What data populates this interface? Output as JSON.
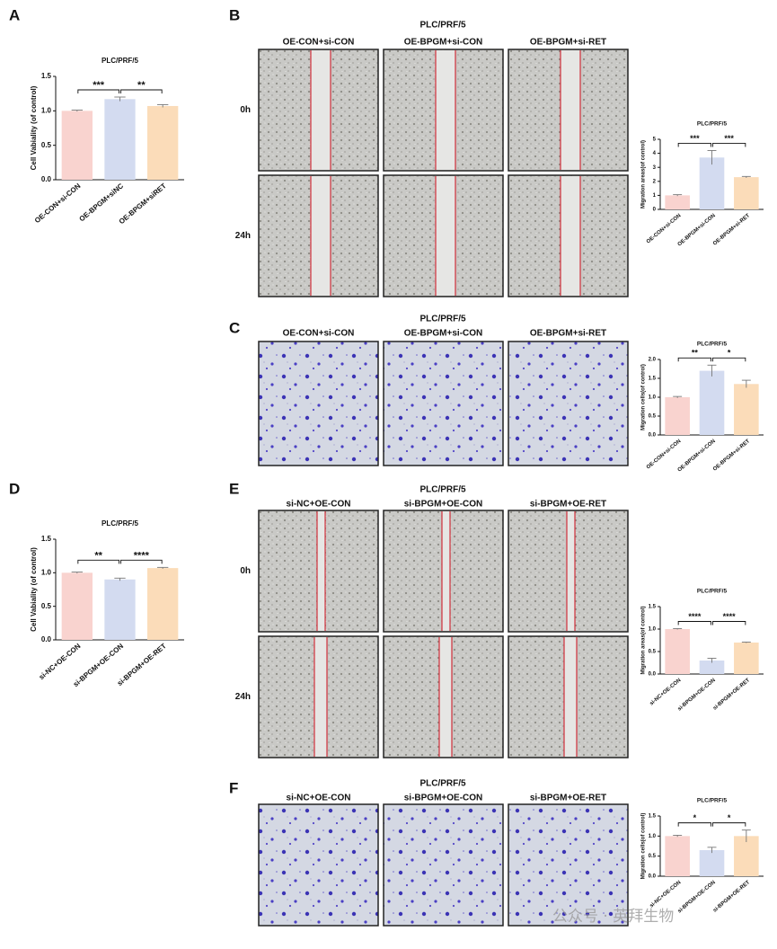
{
  "panel_letters": [
    "A",
    "B",
    "C",
    "D",
    "E",
    "F"
  ],
  "image_panels": [
    {
      "title": "PLC/PRF/5",
      "columns": [
        "OE-CON+si-CON",
        "OE-BPGM+si-CON",
        "OE-BPGM+si-RET"
      ],
      "rows": [
        "0h",
        "24h"
      ]
    },
    {
      "title": "PLC/PRF/5",
      "columns": [
        "OE-CON+si-CON",
        "OE-BPGM+si-CON",
        "OE-BPGM+si-RET"
      ]
    },
    {
      "title": "PLC/PRF/5",
      "columns": [
        "si-NC+OE-CON",
        "si-BPGM+OE-CON",
        "si-BPGM+OE-RET"
      ],
      "rows": [
        "0h",
        "24h"
      ]
    },
    {
      "title": "PLC/PRF/5",
      "columns": [
        "si-NC+OE-CON",
        "si-BPGM+OE-CON",
        "si-BPGM+OE-RET"
      ]
    }
  ],
  "watermark": "公众号 · 英拜生物",
  "chart_data": [
    {
      "type": "bar",
      "title": "PLC/PRF/5",
      "ylabel": "Cell Vabiality (of control)",
      "categories": [
        "OE-CON+si-CON",
        "OE-BPGM+siNC",
        "OE-BPGM+siRET"
      ],
      "values": [
        1.0,
        1.17,
        1.07
      ],
      "errors": [
        0.01,
        0.03,
        0.02
      ],
      "colors": [
        "#f9d3cf",
        "#d3dbf0",
        "#fbdcb9"
      ],
      "ylim": [
        0,
        1.5
      ],
      "yticks": [
        {
          "value": 0,
          "label": "0.0"
        },
        {
          "value": 0.5,
          "label": "0.5"
        },
        {
          "value": 1,
          "label": "1.0"
        },
        {
          "value": 1.5,
          "label": "1.5"
        }
      ],
      "significance": [
        {
          "pair": [
            0,
            1
          ],
          "label": "***"
        },
        {
          "pair": [
            1,
            2
          ],
          "label": "**"
        }
      ]
    },
    {
      "type": "bar",
      "title": "PLC/PRF/5",
      "ylabel": "Migration areas(of control)",
      "categories": [
        "OE-CON+si-CON",
        "OE-BPGM+si-CON",
        "OE-BPGM+si-RET"
      ],
      "values": [
        1.0,
        3.7,
        2.3
      ],
      "errors": [
        0.05,
        0.5,
        0.05
      ],
      "colors": [
        "#f9d3cf",
        "#d3dbf0",
        "#fbdcb9"
      ],
      "ylim": [
        0,
        5
      ],
      "yticks": [
        0,
        1,
        2,
        3,
        4,
        5
      ],
      "significance": [
        {
          "pair": [
            0,
            1
          ],
          "label": "***"
        },
        {
          "pair": [
            1,
            2
          ],
          "label": "***"
        }
      ]
    },
    {
      "type": "bar",
      "title": "PLC/PRF/5",
      "ylabel": "Migration cells(of control)",
      "categories": [
        "OE-CON+si-CON",
        "OE-BPGM+si-CON",
        "OE-BPGM+si-RET"
      ],
      "values": [
        1.0,
        1.7,
        1.35
      ],
      "errors": [
        0.02,
        0.15,
        0.1
      ],
      "colors": [
        "#f9d3cf",
        "#d3dbf0",
        "#fbdcb9"
      ],
      "ylim": [
        0,
        2
      ],
      "yticks": [
        {
          "value": 0,
          "label": "0.0"
        },
        {
          "value": 0.5,
          "label": "0.5"
        },
        {
          "value": 1,
          "label": "1.0"
        },
        {
          "value": 1.5,
          "label": "1.5"
        },
        {
          "value": 2,
          "label": "2.0"
        }
      ],
      "significance": [
        {
          "pair": [
            0,
            1
          ],
          "label": "**"
        },
        {
          "pair": [
            1,
            2
          ],
          "label": "*"
        }
      ]
    },
    {
      "type": "bar",
      "title": "PLC/PRF/5",
      "ylabel": "Cell Vabiality (of control)",
      "categories": [
        "si-NC+OE-CON",
        "si-BPGM+OE-CON",
        "si-BPGM+OE-RET"
      ],
      "values": [
        1.0,
        0.9,
        1.07
      ],
      "errors": [
        0.01,
        0.02,
        0.01
      ],
      "colors": [
        "#f9d3cf",
        "#d3dbf0",
        "#fbdcb9"
      ],
      "ylim": [
        0,
        1.5
      ],
      "yticks": [
        {
          "value": 0,
          "label": "0.0"
        },
        {
          "value": 0.5,
          "label": "0.5"
        },
        {
          "value": 1,
          "label": "1.0"
        },
        {
          "value": 1.5,
          "label": "1.5"
        }
      ],
      "significance": [
        {
          "pair": [
            0,
            1
          ],
          "label": "**"
        },
        {
          "pair": [
            1,
            2
          ],
          "label": "****"
        }
      ]
    },
    {
      "type": "bar",
      "title": "PLC/PRF/5",
      "ylabel": "Migration areas(of control)",
      "categories": [
        "si-NC+OE-CON",
        "si-BPGM+OE-CON",
        "si-BPGM+OE-RET"
      ],
      "values": [
        1.0,
        0.3,
        0.7
      ],
      "errors": [
        0.01,
        0.05,
        0.01
      ],
      "colors": [
        "#f9d3cf",
        "#d3dbf0",
        "#fbdcb9"
      ],
      "ylim": [
        0,
        1.5
      ],
      "yticks": [
        {
          "value": 0,
          "label": "0.0"
        },
        {
          "value": 0.5,
          "label": "0.5"
        },
        {
          "value": 1,
          "label": "1.0"
        },
        {
          "value": 1.5,
          "label": "1.5"
        }
      ],
      "significance": [
        {
          "pair": [
            0,
            1
          ],
          "label": "****"
        },
        {
          "pair": [
            1,
            2
          ],
          "label": "****"
        }
      ]
    },
    {
      "type": "bar",
      "title": "PLC/PRF/5",
      "ylabel": "Migration cells(of control)",
      "categories": [
        "si-NC+OE-CON",
        "si-BPGM+OE-CON",
        "si-BPGM+OE-RET"
      ],
      "values": [
        1.0,
        0.65,
        1.0
      ],
      "errors": [
        0.02,
        0.07,
        0.15
      ],
      "colors": [
        "#f9d3cf",
        "#d3dbf0",
        "#fbdcb9"
      ],
      "ylim": [
        0,
        1.5
      ],
      "yticks": [
        {
          "value": 0,
          "label": "0.0"
        },
        {
          "value": 0.5,
          "label": "0.5"
        },
        {
          "value": 1,
          "label": "1.0"
        },
        {
          "value": 1.5,
          "label": "1.5"
        }
      ],
      "significance": [
        {
          "pair": [
            0,
            1
          ],
          "label": "*"
        },
        {
          "pair": [
            1,
            2
          ],
          "label": "*"
        }
      ]
    }
  ]
}
